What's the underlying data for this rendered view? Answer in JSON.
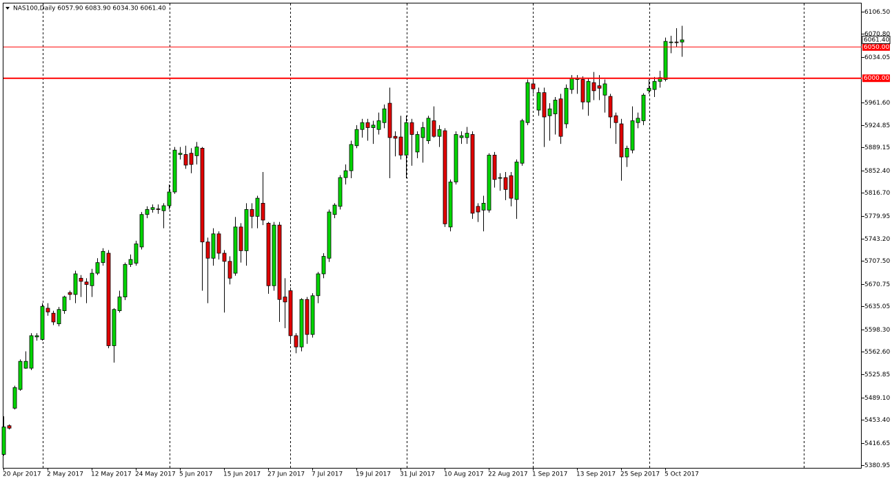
{
  "chart_data": {
    "type": "candlestick",
    "title": "NAS100,Daily  6057.90 6083.90 6034.30 6061.40",
    "categories": [
      "20 Apr 2017",
      null,
      null,
      null,
      null,
      null,
      null,
      null,
      "2 May 2017",
      null,
      null,
      null,
      null,
      null,
      null,
      null,
      "12 May 2017",
      null,
      null,
      null,
      null,
      null,
      null,
      null,
      "24 May 2017",
      null,
      null,
      null,
      null,
      null,
      null,
      null,
      "5 Jun 2017",
      null,
      null,
      null,
      null,
      null,
      null,
      null,
      "15 Jun 2017",
      null,
      null,
      null,
      null,
      null,
      null,
      null,
      "27 Jun 2017",
      null,
      null,
      null,
      null,
      null,
      null,
      null,
      "7 Jul 2017",
      null,
      null,
      null,
      null,
      null,
      null,
      null,
      "19 Jul 2017",
      null,
      null,
      null,
      null,
      null,
      null,
      null,
      "31 Jul 2017",
      null,
      null,
      null,
      null,
      null,
      null,
      null,
      "10 Aug 2017",
      null,
      null,
      null,
      null,
      null,
      null,
      null,
      "22 Aug 2017",
      null,
      null,
      null,
      null,
      null,
      null,
      null,
      "1 Sep 2017",
      null,
      null,
      null,
      null,
      null,
      null,
      null,
      "13 Sep 2017",
      null,
      null,
      null,
      null,
      null,
      null,
      null,
      "25 Sep 2017",
      null,
      null,
      null,
      null,
      null,
      null,
      null,
      "5 Oct 2017",
      null,
      null,
      null
    ],
    "open": [
      5398,
      5444,
      5472,
      5502,
      5536,
      5536,
      5586,
      5582,
      5632,
      5624,
      5607,
      5628,
      5657,
      5654,
      5680,
      5674,
      5668,
      5688,
      5705,
      5720,
      5572,
      5628,
      5650,
      5702,
      5704,
      5730,
      5782,
      5790,
      5791,
      5788,
      5796,
      5818,
      5878,
      5878,
      5880,
      5876,
      5888,
      5738,
      5712,
      5751,
      5720,
      5707,
      5688,
      5762,
      5724,
      5790,
      5779,
      5800,
      5768,
      5668,
      5765,
      5650,
      5660,
      5588,
      5570,
      5646,
      5590,
      5652,
      5687,
      5712,
      5782,
      5795,
      5841,
      5852,
      5892,
      5918,
      5929,
      5921,
      5918,
      5929,
      5960,
      5907,
      5906,
      5877,
      5929,
      5882,
      5905,
      5900,
      5932,
      5907,
      5916,
      5762,
      5834,
      5905,
      5905,
      5910,
      5795,
      5789,
      5789,
      5877,
      5840,
      5841,
      5844,
      5806,
      5864,
      5929,
      5991,
      5949,
      5977,
      5940,
      5943,
      5967,
      5927,
      5982,
      5998,
      5998,
      5962,
      5993,
      5988,
      5973,
      5971,
      5940,
      5927,
      5874,
      5885,
      5929,
      5932,
      5980,
      5982,
      5995,
      5998,
      6057,
      6058,
      6057.9
    ],
    "high": [
      5459,
      5446,
      5508,
      5550,
      5563,
      5592,
      5592,
      5640,
      5640,
      5628,
      5634,
      5652,
      5660,
      5692,
      5685,
      5680,
      5695,
      5712,
      5728,
      5725,
      5632,
      5660,
      5705,
      5718,
      5740,
      5786,
      5795,
      5798,
      5798,
      5800,
      5830,
      5890,
      5890,
      5892,
      5888,
      5898,
      5890,
      5745,
      5760,
      5755,
      5725,
      5715,
      5778,
      5768,
      5800,
      5800,
      5812,
      5850,
      5770,
      5770,
      5770,
      5680,
      5665,
      5592,
      5648,
      5650,
      5656,
      5690,
      5720,
      5790,
      5800,
      5845,
      5862,
      5900,
      5925,
      5935,
      5935,
      5932,
      5945,
      5958,
      5985,
      5915,
      5940,
      5940,
      5935,
      5915,
      5930,
      5940,
      5955,
      5925,
      5920,
      5838,
      5915,
      5915,
      5922,
      5915,
      5800,
      5812,
      5880,
      5882,
      5848,
      5850,
      5850,
      5870,
      5935,
      5998,
      6000,
      5985,
      5985,
      5960,
      5970,
      5975,
      5990,
      6005,
      6005,
      6003,
      6000,
      6010,
      6005,
      5998,
      5975,
      5945,
      5935,
      5892,
      5955,
      5945,
      5976,
      5998,
      6002,
      6012,
      6065,
      6068,
      6080,
      6083.9
    ],
    "low": [
      5396,
      5438,
      5470,
      5500,
      5535,
      5533,
      5580,
      5580,
      5620,
      5605,
      5603,
      5623,
      5645,
      5640,
      5650,
      5640,
      5650,
      5685,
      5700,
      5568,
      5545,
      5625,
      5645,
      5698,
      5700,
      5726,
      5776,
      5785,
      5783,
      5760,
      5790,
      5815,
      5870,
      5855,
      5848,
      5862,
      5660,
      5640,
      5700,
      5710,
      5625,
      5670,
      5684,
      5705,
      5700,
      5760,
      5760,
      5765,
      5655,
      5660,
      5610,
      5600,
      5575,
      5560,
      5563,
      5575,
      5585,
      5640,
      5680,
      5706,
      5776,
      5790,
      5830,
      5840,
      5888,
      5905,
      5900,
      5895,
      5910,
      5920,
      5840,
      5875,
      5870,
      5840,
      5860,
      5872,
      5865,
      5895,
      5905,
      5890,
      5762,
      5755,
      5830,
      5895,
      5895,
      5775,
      5770,
      5755,
      5785,
      5825,
      5820,
      5805,
      5795,
      5775,
      5860,
      5925,
      5975,
      5940,
      5890,
      5900,
      5910,
      5895,
      5920,
      5975,
      5975,
      5950,
      5940,
      5965,
      5965,
      5945,
      5920,
      5895,
      5836,
      5858,
      5880,
      5920,
      5925,
      5975,
      5970,
      5985,
      5995,
      6040,
      6050,
      6034.3
    ],
    "close": [
      5442,
      5440,
      5505,
      5547,
      5547,
      5588,
      5588,
      5635,
      5626,
      5610,
      5630,
      5650,
      5654,
      5687,
      5675,
      5670,
      5688,
      5705,
      5723,
      5572,
      5630,
      5650,
      5702,
      5710,
      5735,
      5782,
      5790,
      5793,
      5790,
      5796,
      5818,
      5885,
      5880,
      5861,
      5862,
      5890,
      5738,
      5712,
      5751,
      5720,
      5707,
      5680,
      5762,
      5724,
      5790,
      5779,
      5808,
      5773,
      5668,
      5765,
      5646,
      5642,
      5588,
      5570,
      5646,
      5590,
      5652,
      5687,
      5715,
      5786,
      5797,
      5841,
      5852,
      5894,
      5918,
      5929,
      5921,
      5925,
      5932,
      5951,
      5905,
      5904,
      5877,
      5929,
      5910,
      5910,
      5921,
      5936,
      5907,
      5918,
      5767,
      5834,
      5910,
      5908,
      5912,
      5784,
      5786,
      5800,
      5877,
      5838,
      5841,
      5822,
      5808,
      5866,
      5932,
      5993,
      5983,
      5977,
      5938,
      5951,
      5965,
      5907,
      5984,
      6000,
      6000,
      5962,
      5995,
      5980,
      5984,
      5991,
      5938,
      5929,
      5874,
      5888,
      5932,
      5936,
      5973,
      5984,
      5995,
      6001,
      6059,
      6058,
      6057,
      6061.4
    ],
    "up_color": "#00d400",
    "down_color": "#e00000",
    "ylim": [
      5376.5,
      6120.8
    ],
    "yticks": [
      {
        "value": 6106.5,
        "label": "6106.50"
      },
      {
        "value": 6070.8,
        "label": "6070.80"
      },
      {
        "value": 6034.05,
        "label": "6034.05"
      },
      {
        "value": 5961.6,
        "label": "5961.60"
      },
      {
        "value": 5924.85,
        "label": "5924.85"
      },
      {
        "value": 5889.15,
        "label": "5889.15"
      },
      {
        "value": 5852.4,
        "label": "5852.40"
      },
      {
        "value": 5816.7,
        "label": "5816.70"
      },
      {
        "value": 5779.95,
        "label": "5779.95"
      },
      {
        "value": 5743.2,
        "label": "5743.20"
      },
      {
        "value": 5707.5,
        "label": "5707.50"
      },
      {
        "value": 5670.75,
        "label": "5670.75"
      },
      {
        "value": 5635.05,
        "label": "5635.05"
      },
      {
        "value": 5598.3,
        "label": "5598.30"
      },
      {
        "value": 5562.6,
        "label": "5562.60"
      },
      {
        "value": 5525.85,
        "label": "5525.85"
      },
      {
        "value": 5489.1,
        "label": "5489.10"
      },
      {
        "value": 5453.4,
        "label": "5453.40"
      },
      {
        "value": 5416.65,
        "label": "5416.65"
      },
      {
        "value": 5380.95,
        "label": "5380.95"
      }
    ],
    "hlines": [
      {
        "value": 6050,
        "label": "6050.00",
        "color": "#ff0000",
        "width": 1
      },
      {
        "value": 6000,
        "label": "6000.00",
        "color": "#ff0000",
        "width": 2
      }
    ],
    "last_price": {
      "value": 6061.4,
      "label": "6061.40"
    }
  }
}
